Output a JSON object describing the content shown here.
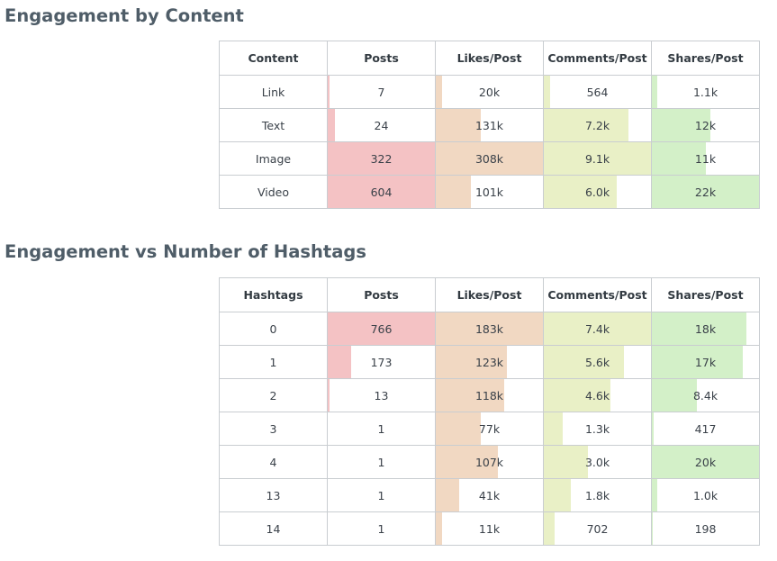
{
  "colors": {
    "Posts": "#f4c2c4",
    "Likes/Post": "#f1d8c2",
    "Comments/Post": "#e9f0c6",
    "Shares/Post": "#d3f0c8"
  },
  "sections": [
    {
      "title": "Engagement by Content",
      "headers": [
        "Content",
        "Posts",
        "Likes/Post",
        "Comments/Post",
        "Shares/Post"
      ],
      "rows": [
        {
          "label": "Link",
          "cells": [
            {
              "text": "7",
              "fill": 0.02
            },
            {
              "text": "20k",
              "fill": 0.06
            },
            {
              "text": "564",
              "fill": 0.06
            },
            {
              "text": "1.1k",
              "fill": 0.05
            }
          ]
        },
        {
          "label": "Text",
          "cells": [
            {
              "text": "24",
              "fill": 0.07
            },
            {
              "text": "131k",
              "fill": 0.42
            },
            {
              "text": "7.2k",
              "fill": 0.79
            },
            {
              "text": "12k",
              "fill": 0.55
            }
          ]
        },
        {
          "label": "Image",
          "cells": [
            {
              "text": "322",
              "fill": 1.0
            },
            {
              "text": "308k",
              "fill": 1.0
            },
            {
              "text": "9.1k",
              "fill": 1.0
            },
            {
              "text": "11k",
              "fill": 0.5
            }
          ]
        },
        {
          "label": "Video",
          "cells": [
            {
              "text": "604",
              "fill": 1.0
            },
            {
              "text": "101k",
              "fill": 0.33
            },
            {
              "text": "6.0k",
              "fill": 0.68
            },
            {
              "text": "22k",
              "fill": 1.0
            }
          ]
        }
      ]
    },
    {
      "title": "Engagement vs Number of Hashtags",
      "headers": [
        "Hashtags",
        "Posts",
        "Likes/Post",
        "Comments/Post",
        "Shares/Post"
      ],
      "rows": [
        {
          "label": "0",
          "cells": [
            {
              "text": "766",
              "fill": 1.0
            },
            {
              "text": "183k",
              "fill": 1.0
            },
            {
              "text": "7.4k",
              "fill": 1.0
            },
            {
              "text": "18k",
              "fill": 0.88
            }
          ]
        },
        {
          "label": "1",
          "cells": [
            {
              "text": "173",
              "fill": 0.22
            },
            {
              "text": "123k",
              "fill": 0.66
            },
            {
              "text": "5.6k",
              "fill": 0.75
            },
            {
              "text": "17k",
              "fill": 0.85
            }
          ]
        },
        {
          "label": "2",
          "cells": [
            {
              "text": "13",
              "fill": 0.02
            },
            {
              "text": "118k",
              "fill": 0.64
            },
            {
              "text": "4.6k",
              "fill": 0.62
            },
            {
              "text": "8.4k",
              "fill": 0.42
            }
          ]
        },
        {
          "label": "3",
          "cells": [
            {
              "text": "1",
              "fill": 0.0
            },
            {
              "text": "77k",
              "fill": 0.42
            },
            {
              "text": "1.3k",
              "fill": 0.18
            },
            {
              "text": "417",
              "fill": 0.02
            }
          ]
        },
        {
          "label": "4",
          "cells": [
            {
              "text": "1",
              "fill": 0.0
            },
            {
              "text": "107k",
              "fill": 0.58
            },
            {
              "text": "3.0k",
              "fill": 0.41
            },
            {
              "text": "20k",
              "fill": 1.0
            }
          ]
        },
        {
          "label": "13",
          "cells": [
            {
              "text": "1",
              "fill": 0.0
            },
            {
              "text": "41k",
              "fill": 0.22
            },
            {
              "text": "1.8k",
              "fill": 0.25
            },
            {
              "text": "1.0k",
              "fill": 0.05
            }
          ]
        },
        {
          "label": "14",
          "cells": [
            {
              "text": "1",
              "fill": 0.0
            },
            {
              "text": "11k",
              "fill": 0.06
            },
            {
              "text": "702",
              "fill": 0.1
            },
            {
              "text": "198",
              "fill": 0.01
            }
          ]
        }
      ]
    }
  ]
}
